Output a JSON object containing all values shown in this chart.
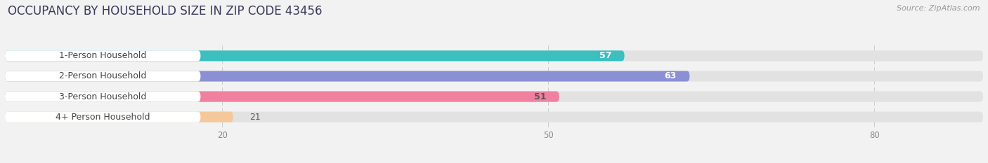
{
  "title": "OCCUPANCY BY HOUSEHOLD SIZE IN ZIP CODE 43456",
  "source": "Source: ZipAtlas.com",
  "categories": [
    "1-Person Household",
    "2-Person Household",
    "3-Person Household",
    "4+ Person Household"
  ],
  "values": [
    57,
    63,
    51,
    21
  ],
  "bar_colors": [
    "#3bbfbf",
    "#8b8fd4",
    "#f07fa0",
    "#f5c89a"
  ],
  "background_color": "#f2f2f2",
  "bar_bg_color": "#e2e2e2",
  "label_bg_color": "#ffffff",
  "xlim_max": 90,
  "xticks": [
    20,
    50,
    80
  ],
  "title_fontsize": 12,
  "source_fontsize": 8,
  "label_fontsize": 9,
  "value_fontsize": 9,
  "value_colors_inside": [
    "#ffffff",
    "#ffffff",
    "#555555",
    "#555555"
  ],
  "label_text_color": "#444444"
}
